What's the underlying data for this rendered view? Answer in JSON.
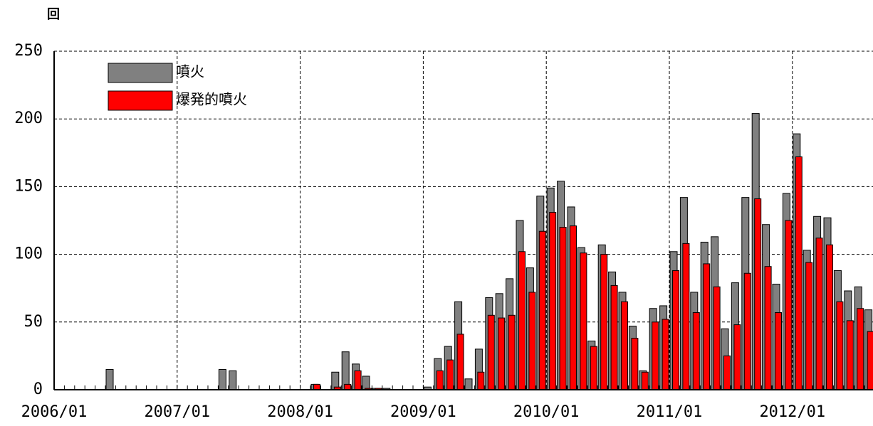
{
  "chart_data": {
    "type": "bar",
    "y_label": "回",
    "categories": [
      "2006/01",
      null,
      null,
      null,
      null,
      null,
      null,
      null,
      null,
      null,
      null,
      null,
      "2007/01",
      null,
      null,
      null,
      null,
      null,
      null,
      null,
      null,
      null,
      null,
      null,
      "2008/01",
      null,
      null,
      null,
      null,
      null,
      null,
      null,
      null,
      null,
      null,
      null,
      "2009/01",
      null,
      null,
      null,
      null,
      null,
      null,
      null,
      null,
      null,
      null,
      null,
      "2010/01",
      null,
      null,
      null,
      null,
      null,
      null,
      null,
      null,
      null,
      null,
      null,
      "2011/01",
      null,
      null,
      null,
      null,
      null,
      null,
      null,
      null,
      null,
      null,
      null,
      "2012/01",
      null,
      null,
      null,
      null,
      null,
      null,
      null
    ],
    "series": [
      {
        "name": "噴火",
        "color": "#808080",
        "values": [
          0,
          0,
          0,
          0,
          0,
          15,
          0,
          0,
          0,
          0,
          0,
          0,
          0,
          0,
          0,
          0,
          15,
          14,
          0,
          0,
          0,
          0,
          0,
          0,
          0,
          4,
          0,
          13,
          28,
          19,
          10,
          1,
          1,
          0,
          0,
          0,
          2,
          23,
          32,
          65,
          8,
          30,
          68,
          71,
          82,
          125,
          90,
          143,
          149,
          154,
          135,
          105,
          36,
          107,
          87,
          72,
          47,
          14,
          60,
          62,
          102,
          142,
          72,
          109,
          113,
          45,
          79,
          142,
          204,
          122,
          78,
          145,
          189,
          103,
          128,
          127,
          88,
          73,
          76,
          59
        ]
      },
      {
        "name": "爆発的噴火",
        "color": "#ff0000",
        "values": [
          0,
          0,
          0,
          0,
          0,
          0,
          0,
          0,
          0,
          0,
          0,
          0,
          0,
          0,
          0,
          0,
          0,
          0,
          0,
          0,
          0,
          0,
          0,
          0,
          0,
          4,
          0,
          2,
          4,
          14,
          1,
          1,
          0,
          0,
          0,
          0,
          0,
          14,
          22,
          41,
          0,
          13,
          55,
          53,
          55,
          102,
          72,
          117,
          131,
          120,
          121,
          101,
          32,
          100,
          77,
          65,
          38,
          13,
          50,
          52,
          88,
          108,
          57,
          93,
          76,
          25,
          48,
          86,
          141,
          91,
          57,
          125,
          172,
          94,
          112,
          107,
          65,
          51,
          60,
          43
        ]
      }
    ],
    "ylim": [
      0,
      250
    ],
    "yticks": [
      0,
      50,
      100,
      150,
      200,
      250
    ],
    "grid": true
  }
}
